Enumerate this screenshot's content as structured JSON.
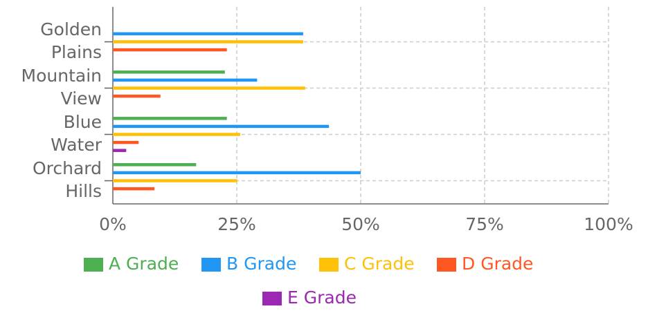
{
  "chart_data": {
    "type": "bar",
    "orientation": "horizontal",
    "categories": [
      "Golden Plains",
      "Mountain View",
      "Blue Water",
      "Orchard Hills"
    ],
    "series": [
      {
        "name": "A Grade",
        "color": "#4caf50",
        "values": [
          null,
          22.6,
          23.0,
          16.8
        ]
      },
      {
        "name": "B Grade",
        "color": "#2196f3",
        "values": [
          38.4,
          29.1,
          43.6,
          50.0
        ]
      },
      {
        "name": "C Grade",
        "color": "#ffc107",
        "values": [
          38.4,
          38.8,
          25.7,
          25.1
        ]
      },
      {
        "name": "D Grade",
        "color": "#ff5722",
        "values": [
          23.0,
          9.6,
          5.2,
          8.4
        ]
      },
      {
        "name": "E Grade",
        "color": "#9c27b0",
        "values": [
          null,
          null,
          2.7,
          null
        ]
      }
    ],
    "xlim": [
      0,
      100
    ],
    "xticks": [
      {
        "value": 0,
        "label": "0%"
      },
      {
        "value": 25,
        "label": "25%"
      },
      {
        "value": 50,
        "label": "50%"
      },
      {
        "value": 75,
        "label": "75%"
      },
      {
        "value": 100,
        "label": "100%"
      }
    ],
    "grid": true
  }
}
